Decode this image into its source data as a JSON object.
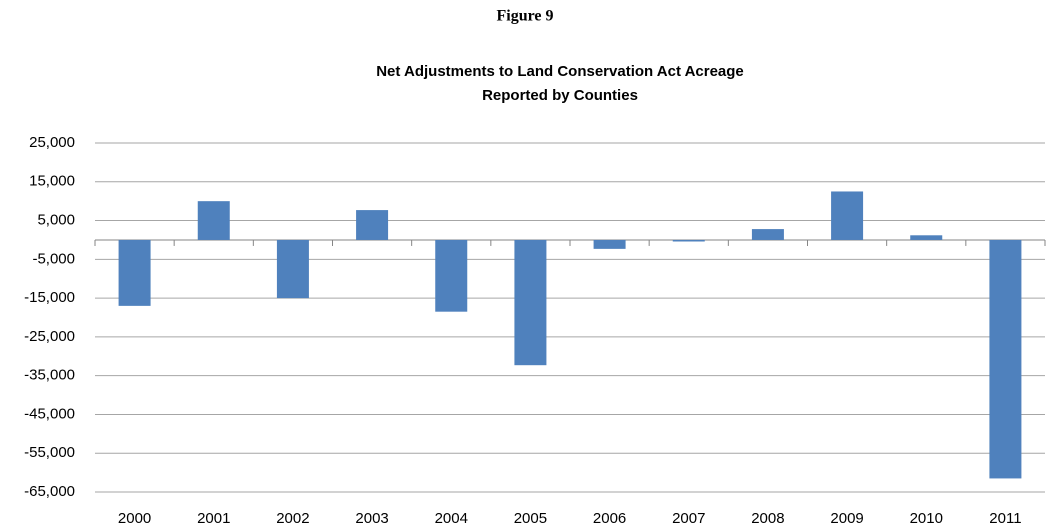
{
  "chart_data": {
    "type": "bar",
    "figure_label": "Figure 9",
    "title": [
      "Net Adjustments to Land Conservation Act Acreage",
      "Reported by Counties"
    ],
    "categories": [
      "2000",
      "2001",
      "2002",
      "2003",
      "2004",
      "2005",
      "2006",
      "2007",
      "2008",
      "2009",
      "2010",
      "2011"
    ],
    "values": [
      -17000,
      10000,
      -15000,
      7700,
      -18500,
      -32300,
      -2300,
      -400,
      2800,
      12500,
      1200,
      -61500
    ],
    "color": "#4f81bd",
    "ylim": [
      -65000,
      25000
    ],
    "yticks": [
      {
        "value": -65000,
        "label": "-65,000"
      },
      {
        "value": -55000,
        "label": "-55,000"
      },
      {
        "value": -45000,
        "label": "-45,000"
      },
      {
        "value": -35000,
        "label": "-35,000"
      },
      {
        "value": -25000,
        "label": "-25,000"
      },
      {
        "value": -15000,
        "label": "-15,000"
      },
      {
        "value": -5000,
        "label": "-5,000"
      },
      {
        "value": 5000,
        "label": "5,000"
      },
      {
        "value": 15000,
        "label": "15,000"
      },
      {
        "value": 25000,
        "label": "25,000"
      }
    ],
    "grid": true
  }
}
